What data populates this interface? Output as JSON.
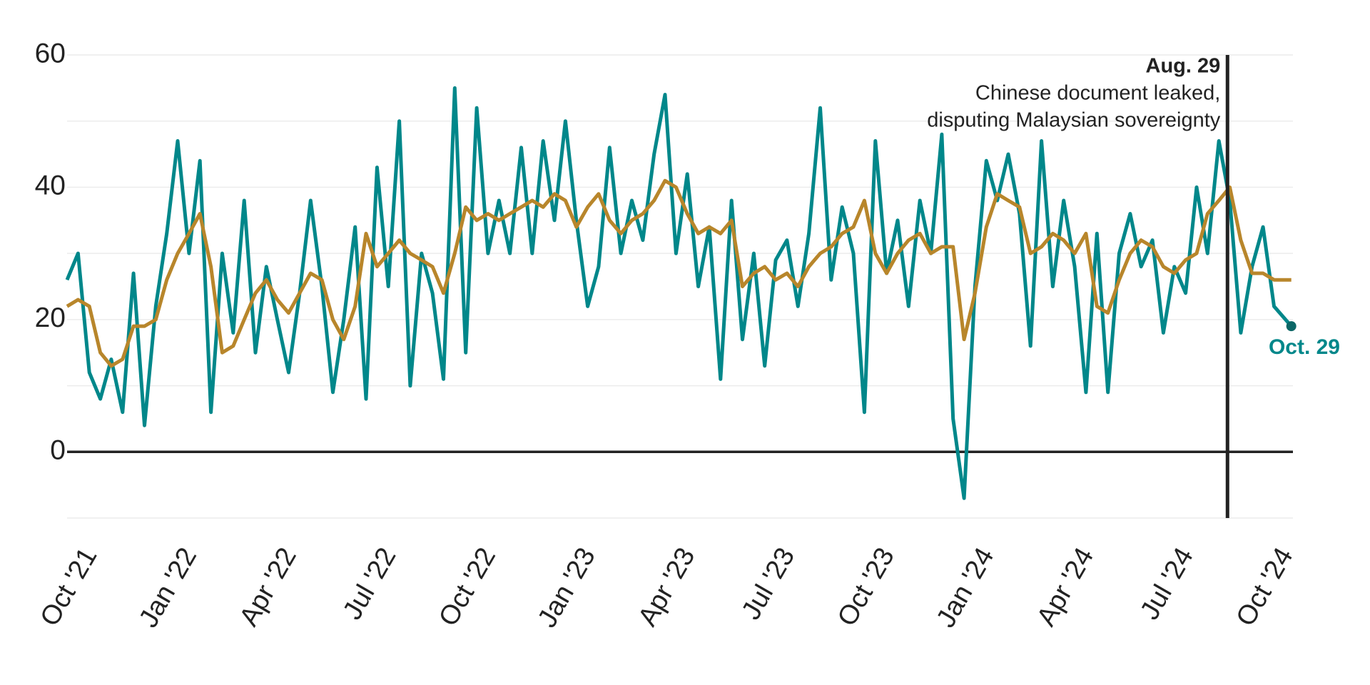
{
  "chart_data": {
    "type": "line",
    "x": [
      0,
      0.33,
      0.67,
      1,
      1.33,
      1.67,
      2,
      2.33,
      2.67,
      3,
      3.33,
      3.67,
      4,
      4.33,
      4.67,
      5,
      5.33,
      5.67,
      6,
      6.33,
      6.67,
      7,
      7.33,
      7.67,
      8,
      8.33,
      8.67,
      9,
      9.33,
      9.67,
      10,
      10.33,
      10.67,
      11,
      11.33,
      11.67,
      12,
      12.33,
      12.67,
      13,
      13.33,
      13.67,
      14,
      14.33,
      14.67,
      15,
      15.33,
      15.67,
      16,
      16.33,
      16.67,
      17,
      17.33,
      17.67,
      18,
      18.33,
      18.67,
      19,
      19.33,
      19.67,
      20,
      20.33,
      20.67,
      21,
      21.33,
      21.67,
      22,
      22.33,
      22.67,
      23,
      23.33,
      23.67,
      24,
      24.33,
      24.67,
      25,
      25.33,
      25.67,
      26,
      26.33,
      26.67,
      27,
      27.33,
      27.67,
      28,
      28.33,
      28.67,
      29,
      29.33,
      29.67,
      30,
      30.33,
      30.67,
      31,
      31.33,
      31.67,
      32,
      32.33,
      32.67,
      33,
      33.33,
      33.67,
      34,
      34.33,
      34.67,
      35,
      35.33,
      35.67,
      36,
      36.33,
      36.85
    ],
    "series": [
      {
        "color": "#00878a",
        "values": [
          26,
          30,
          12,
          8,
          14,
          6,
          27,
          4,
          22,
          33,
          47,
          30,
          44,
          6,
          30,
          18,
          38,
          15,
          28,
          20,
          12,
          24,
          38,
          25,
          9,
          20,
          34,
          8,
          43,
          25,
          50,
          10,
          30,
          24,
          11,
          55,
          15,
          52,
          30,
          38,
          30,
          46,
          30,
          47,
          35,
          50,
          35,
          22,
          28,
          46,
          30,
          38,
          32,
          45,
          54,
          30,
          42,
          25,
          34,
          11,
          38,
          17,
          30,
          13,
          29,
          32,
          22,
          33,
          52,
          26,
          37,
          30,
          6,
          47,
          27,
          35,
          22,
          38,
          30,
          48,
          5,
          -7,
          25,
          44,
          38,
          45,
          36,
          16,
          47,
          25,
          38,
          28,
          9,
          33,
          9,
          30,
          36,
          28,
          32,
          18,
          28,
          24,
          40,
          30,
          47,
          38,
          18,
          28,
          34,
          22,
          19
        ]
      },
      {
        "color": "#b8862b",
        "values": [
          22,
          23,
          22,
          15,
          13,
          14,
          19,
          19,
          20,
          26,
          30,
          33,
          36,
          28,
          15,
          16,
          20,
          24,
          26,
          23,
          21,
          24,
          27,
          26,
          20,
          17,
          22,
          33,
          28,
          30,
          32,
          30,
          29,
          28,
          24,
          30,
          37,
          35,
          36,
          35,
          36,
          37,
          38,
          37,
          39,
          38,
          34,
          37,
          39,
          35,
          33,
          35,
          36,
          38,
          41,
          40,
          36,
          33,
          34,
          33,
          35,
          25,
          27,
          28,
          26,
          27,
          25,
          28,
          30,
          31,
          33,
          34,
          38,
          30,
          27,
          30,
          32,
          33,
          30,
          31,
          31,
          17,
          24,
          34,
          39,
          38,
          37,
          30,
          31,
          33,
          32,
          30,
          33,
          22,
          21,
          26,
          30,
          32,
          31,
          28,
          27,
          29,
          30,
          36,
          38,
          40,
          32,
          27,
          27,
          26,
          26
        ]
      }
    ],
    "xlim": [
      0,
      36.9
    ],
    "xticks": [
      {
        "value": 0,
        "label": "Oct '21"
      },
      {
        "value": 3,
        "label": "Jan '22"
      },
      {
        "value": 6,
        "label": "Apr '22"
      },
      {
        "value": 9,
        "label": "Jul '22"
      },
      {
        "value": 12,
        "label": "Oct '22"
      },
      {
        "value": 15,
        "label": "Jan '23"
      },
      {
        "value": 18,
        "label": "Apr '23"
      },
      {
        "value": 21,
        "label": "Jul '23"
      },
      {
        "value": 24,
        "label": "Oct '23"
      },
      {
        "value": 27,
        "label": "Jan '24"
      },
      {
        "value": 30,
        "label": "Apr '24"
      },
      {
        "value": 33,
        "label": "Jul '24"
      },
      {
        "value": 36,
        "label": "Oct '24"
      }
    ],
    "ylim": [
      -10,
      60
    ],
    "yticks": [
      0,
      20,
      40,
      60
    ],
    "yminor": [
      -10,
      10,
      30,
      50
    ],
    "grid": true,
    "annotation": {
      "x": 34.93,
      "label": "Aug. 29",
      "text": [
        "Chinese document leaked,",
        "disputing Malaysian sovereignty"
      ]
    },
    "end_label": "Oct. 29"
  }
}
